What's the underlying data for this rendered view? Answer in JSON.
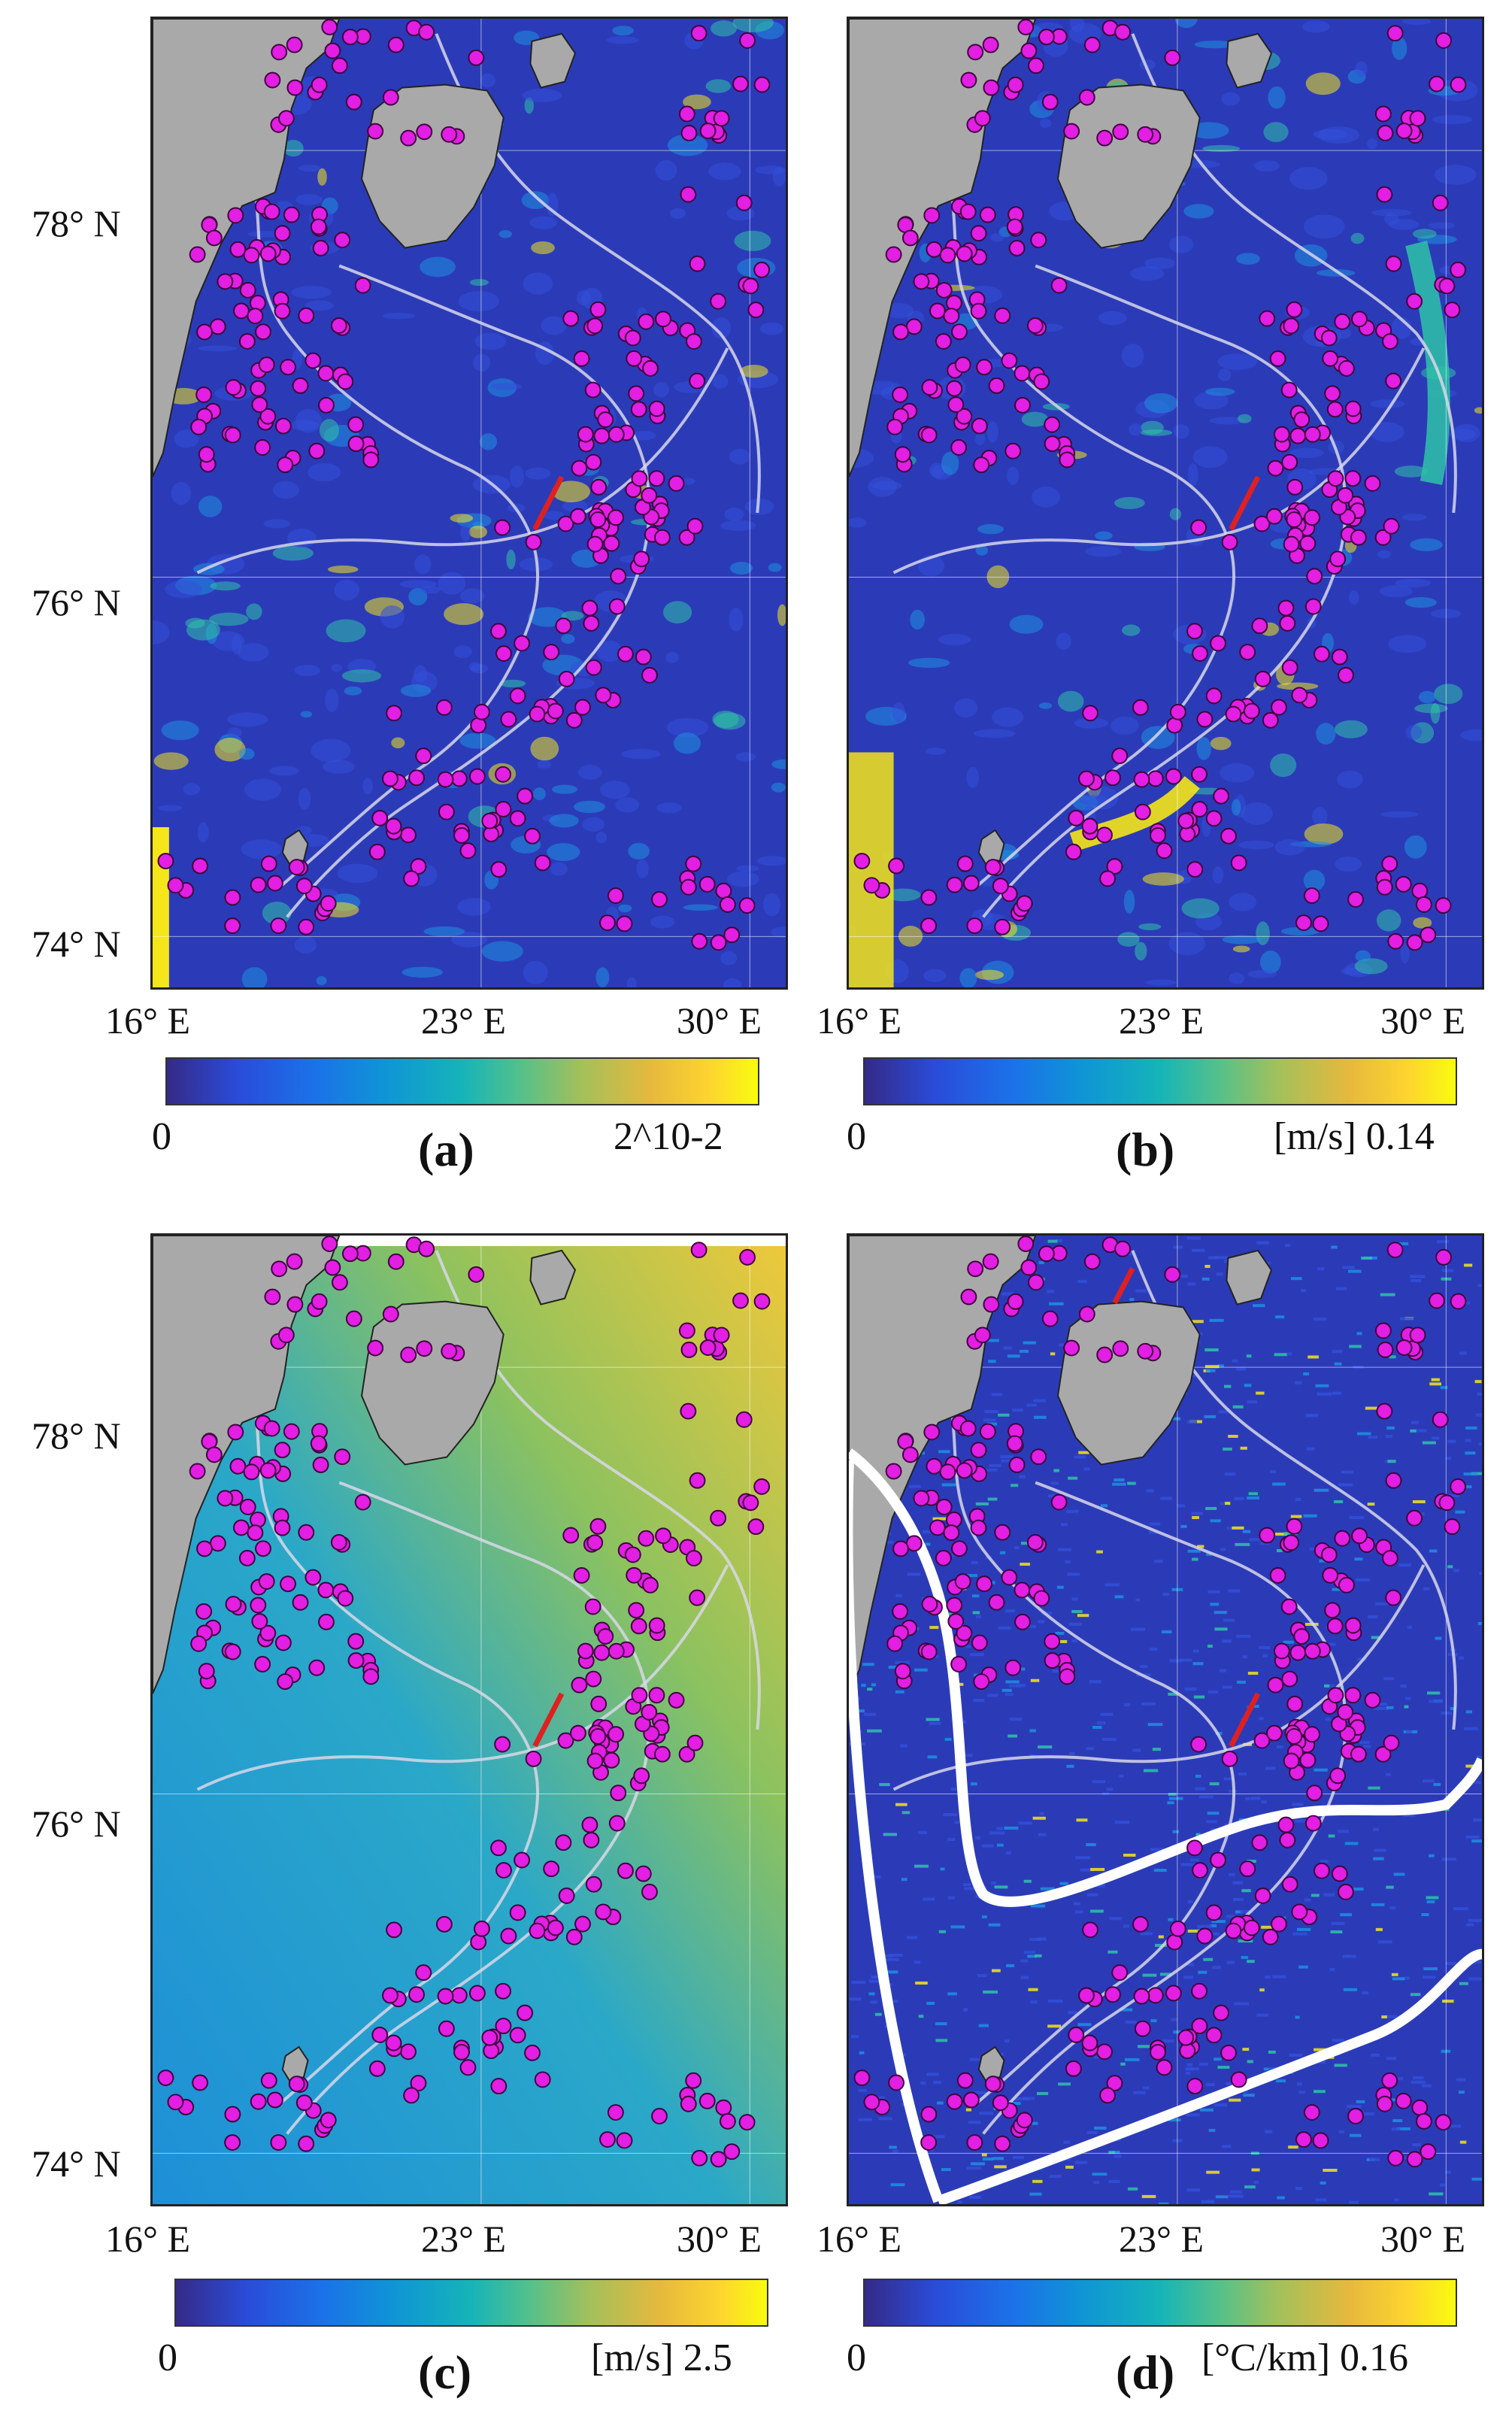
{
  "figure": {
    "panels": [
      {
        "id": "a",
        "tag": "(a)",
        "lat_labels": [
          "78° N",
          "76° N",
          "74° N"
        ],
        "lon_labels": [
          "16° E",
          "23° E",
          "30° E"
        ],
        "colorbar": {
          "min_label": "0",
          "max_label": "2^10-2",
          "colormap": "parula"
        }
      },
      {
        "id": "b",
        "tag": "(b)",
        "lon_labels": [
          "16° E",
          "23° E",
          "30° E"
        ],
        "colorbar": {
          "min_label": "0",
          "max_label": "[m/s] 0.14",
          "colormap": "parula"
        }
      },
      {
        "id": "c",
        "tag": "(c)",
        "lat_labels": [
          "78° N",
          "76° N",
          "74° N"
        ],
        "lon_labels": [
          "16° E",
          "23° E",
          "30° E"
        ],
        "colorbar": {
          "min_label": "0",
          "max_label": "[m/s] 2.5",
          "colormap": "parula"
        }
      },
      {
        "id": "d",
        "tag": "(d)",
        "lon_labels": [
          "16° E",
          "23° E",
          "30° E"
        ],
        "colorbar": {
          "min_label": "0",
          "max_label": "[°C/km] 0.16",
          "colormap": "parula"
        }
      }
    ],
    "colors": {
      "land": "#a9a9a9",
      "sea_low": "#2b3bb8",
      "sea_high": "#f5e61a",
      "contour": "#d8d8e8",
      "marker": "#e21fe2",
      "track": "#e02020",
      "outline": "#ffffff"
    }
  }
}
